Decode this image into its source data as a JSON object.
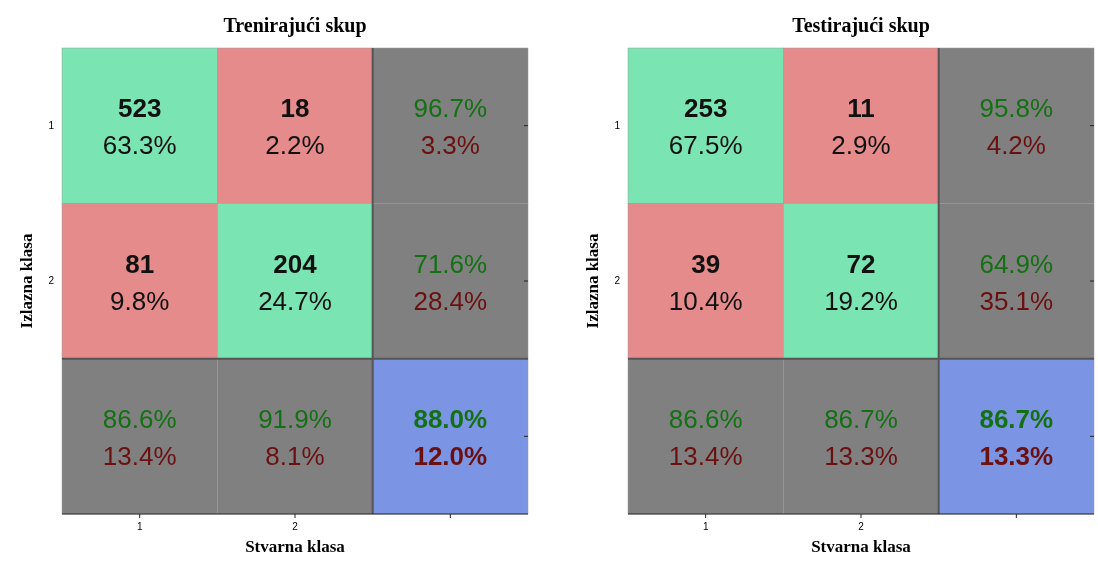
{
  "chart_data": [
    {
      "type": "heatmap",
      "title": "Trenirajući skup",
      "xlabel": "Stvarna klasa",
      "ylabel": "Izlazna klasa",
      "categories": [
        "1",
        "2",
        null
      ],
      "y_categories": [
        "1",
        "2",
        null
      ],
      "cells": [
        [
          523,
          18,
          96.7
        ],
        [
          81,
          204,
          71.6
        ],
        [
          86.6,
          91.9,
          88.0
        ]
      ],
      "cell_labels": [
        [
          "523",
          "18",
          "96.7%"
        ],
        [
          "81",
          "204",
          "71.6%"
        ],
        [
          "86.6%",
          "91.9%",
          "88.0%"
        ]
      ],
      "annotations": [
        "63.3%",
        "2.2%",
        "3.3%",
        "9.8%",
        "24.7%",
        "28.4%",
        "13.4%",
        "8.1%",
        "12.0%"
      ],
      "colors": [
        [
          "#7be4b3",
          "#e58b8b",
          "#808080"
        ],
        [
          "#e58b8b",
          "#7be4b3",
          "#808080"
        ],
        [
          "#808080",
          "#808080",
          "#7b95e4"
        ]
      ]
    },
    {
      "type": "heatmap",
      "title": "Testirajući skup",
      "xlabel": "Stvarna klasa",
      "ylabel": "Izlazna klasa",
      "categories": [
        "1",
        "2",
        null
      ],
      "y_categories": [
        "1",
        "2",
        null
      ],
      "cells": [
        [
          253,
          11,
          95.8
        ],
        [
          39,
          72,
          64.9
        ],
        [
          86.6,
          86.7,
          86.7
        ]
      ],
      "cell_labels": [
        [
          "253",
          "11",
          "95.8%"
        ],
        [
          "39",
          "72",
          "64.9%"
        ],
        [
          "86.6%",
          "86.7%",
          "86.7%"
        ]
      ],
      "annotations": [
        "67.5%",
        "2.9%",
        "4.2%",
        "10.4%",
        "19.2%",
        "35.1%",
        "13.4%",
        "13.3%",
        "13.3%"
      ],
      "colors": [
        [
          "#7be4b3",
          "#e58b8b",
          "#808080"
        ],
        [
          "#e58b8b",
          "#7be4b3",
          "#808080"
        ],
        [
          "#808080",
          "#808080",
          "#7b95e4"
        ]
      ]
    }
  ]
}
